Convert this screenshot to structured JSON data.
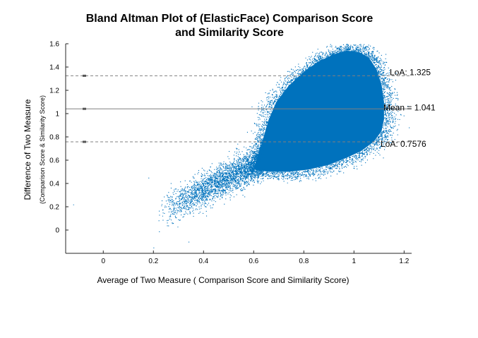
{
  "chart_data": {
    "type": "scatter",
    "title": [
      "Bland Altman Plot of (ElasticFace) Comparison Score",
      "and Similarity Score"
    ],
    "xlabel": "Average of Two Measure ( Comparison Score and Similarity Score)",
    "ylabel": "Difference of Two Measure",
    "ylabel_sub": "(Comparison Score & Similarity Score)",
    "xlim": [
      -0.15,
      1.23
    ],
    "ylim": [
      -0.2,
      1.6
    ],
    "xticks": [
      0,
      0.2,
      0.4,
      0.6,
      0.8,
      1,
      1.2
    ],
    "xtick_labels": [
      "0",
      "0.2",
      "0.4",
      "0.6",
      "0.8",
      "1",
      "1.2"
    ],
    "yticks": [
      0,
      0.2,
      0.4,
      0.6,
      0.8,
      1,
      1.2,
      1.4,
      1.6
    ],
    "ytick_labels": [
      "0",
      "0.2",
      "0.4",
      "0.6",
      "0.8",
      "1",
      "1.2",
      "1.4",
      "1.6"
    ],
    "grid": false,
    "point_color": "#0072bd",
    "line_color": "#808080",
    "reference_lines": [
      {
        "label": "LoA: 1.325",
        "y": 1.325,
        "style": "dashed"
      },
      {
        "label": "Mean = 1.041",
        "y": 1.041,
        "style": "solid"
      },
      {
        "label": "LoA: 0.7576",
        "y": 0.7576,
        "style": "dashed"
      }
    ],
    "point_cloud": {
      "dense_region": {
        "x_range": [
          0.6,
          1.13
        ],
        "y_range": [
          0.48,
          1.56
        ]
      },
      "sparse_tail": {
        "x_range": [
          0.2,
          0.6
        ],
        "y_range": [
          0.1,
          0.75
        ]
      },
      "outliers": [
        {
          "x": -0.12,
          "y": 0.22
        },
        {
          "x": 0.2,
          "y": -0.15
        },
        {
          "x": 0.18,
          "y": 0.45
        },
        {
          "x": 0.34,
          "y": -0.1
        }
      ]
    }
  }
}
